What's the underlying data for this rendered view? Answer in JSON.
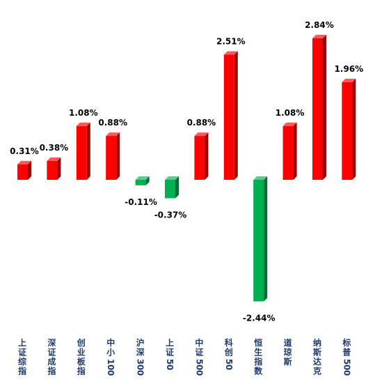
{
  "chart_data": {
    "type": "bar",
    "title": "",
    "xlabel": "",
    "ylabel": "",
    "ylim": [
      -2.6,
      3.0
    ],
    "grid": false,
    "legend": "none",
    "colors": {
      "positive": "#ff0000",
      "negative": "#00b050"
    },
    "categories": [
      "上证综指",
      "深证成指",
      "创业板指",
      "中小100",
      "沪深300",
      "上证50",
      "中证500",
      "科创50",
      "恒生指数",
      "道琼斯",
      "纳斯达克",
      "标普500"
    ],
    "values": [
      0.31,
      0.38,
      1.08,
      0.88,
      -0.11,
      -0.37,
      0.88,
      2.51,
      -2.44,
      1.08,
      2.84,
      1.96
    ],
    "data_labels": [
      "0.31%",
      "0.38%",
      "1.08%",
      "0.88%",
      "-0.11%",
      "-0.37%",
      "0.88%",
      "2.51%",
      "-2.44%",
      "1.08%",
      "2.84%",
      "1.96%"
    ]
  }
}
